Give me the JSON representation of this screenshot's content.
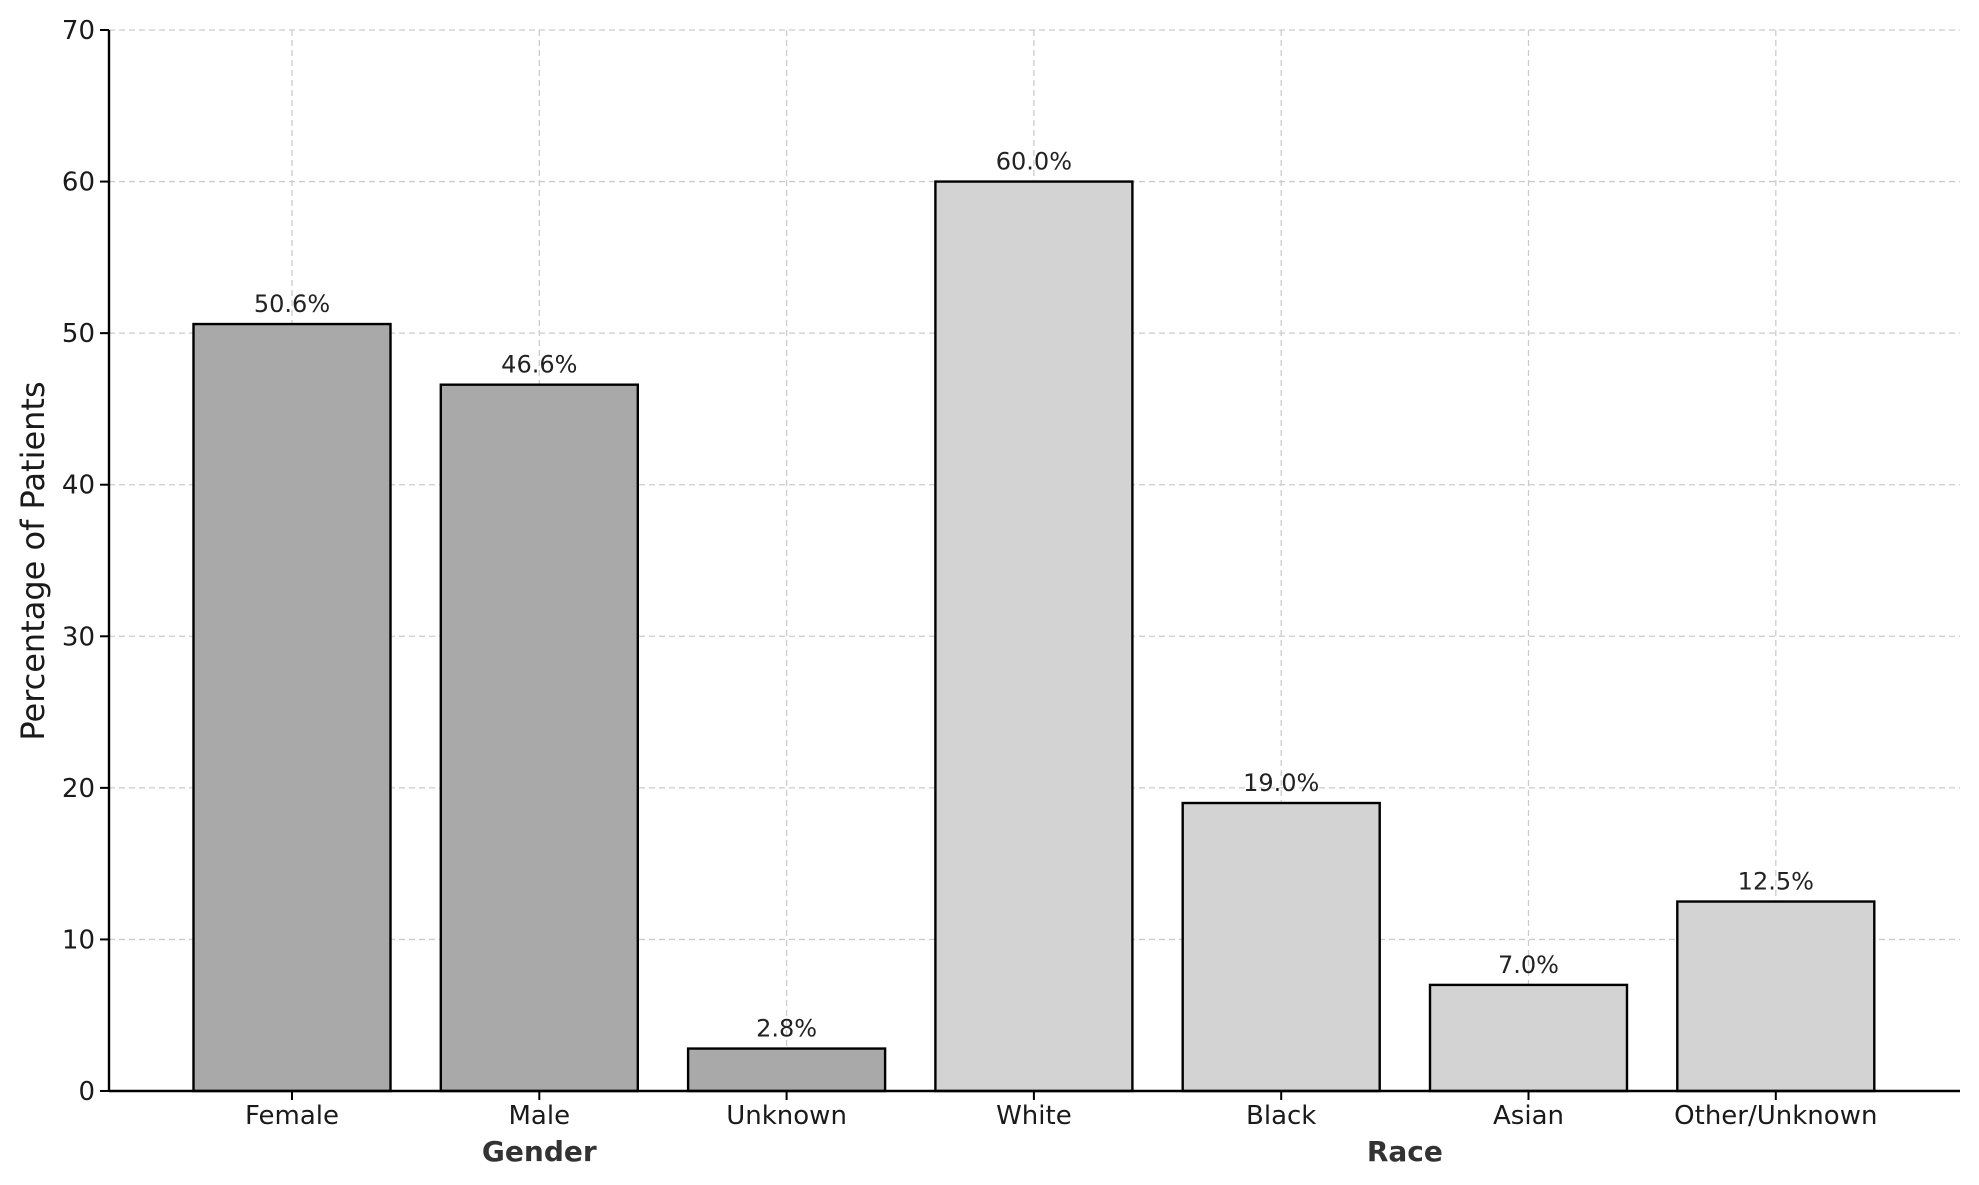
{
  "chart_data": {
    "type": "bar",
    "categories": [
      "Female",
      "Male",
      "Unknown",
      "White",
      "Black",
      "Asian",
      "Other/Unknown"
    ],
    "values": [
      50.6,
      46.6,
      2.8,
      60.0,
      19.0,
      7.0,
      12.5
    ],
    "data_labels": [
      "50.6%",
      "46.6%",
      "2.8%",
      "60.0%",
      "19.0%",
      "7.0%",
      "12.5%"
    ],
    "groups": [
      {
        "name": "Gender",
        "categories": [
          "Female",
          "Male",
          "Unknown"
        ],
        "color": "#a9a9a9"
      },
      {
        "name": "Race",
        "categories": [
          "White",
          "Black",
          "Asian",
          "Other/Unknown"
        ],
        "color": "#d3d3d3"
      }
    ],
    "title": "",
    "xlabel": "",
    "ylabel": "Percentage of Patients",
    "ylim": [
      0,
      70
    ],
    "yticks": [
      0,
      10,
      20,
      30,
      40,
      50,
      60,
      70
    ],
    "grid": true,
    "colors": {
      "gender_bars": "#a9a9a9",
      "race_bars": "#d3d3d3",
      "bar_edge": "#000000",
      "grid": "#cccccc"
    }
  }
}
